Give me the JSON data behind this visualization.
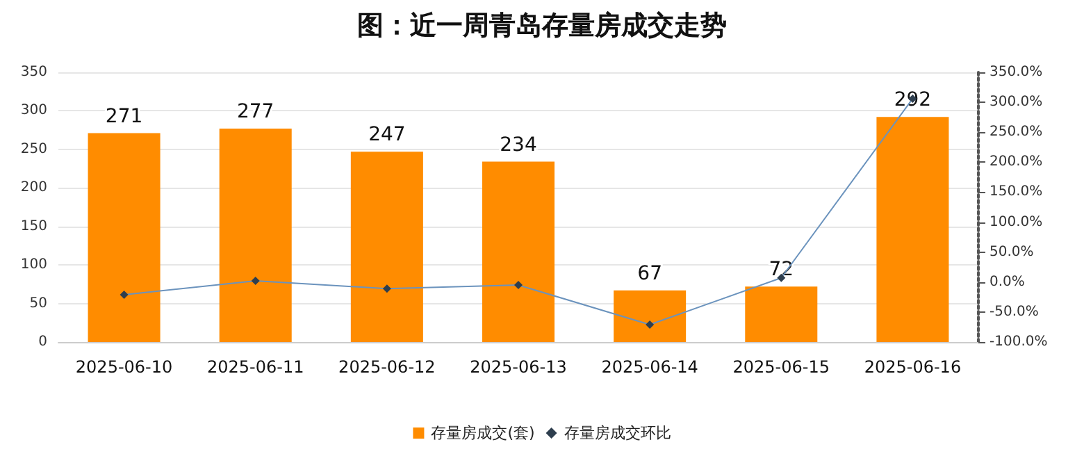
{
  "chart_data": {
    "type": "bar",
    "title": "图：近一周青岛存量房成交走势",
    "categories": [
      "2025-06-10",
      "2025-06-11",
      "2025-06-12",
      "2025-06-13",
      "2025-06-14",
      "2025-06-15",
      "2025-06-16"
    ],
    "series": [
      {
        "name": "存量房成交(套)",
        "color": "#ff8c00",
        "values": [
          271,
          277,
          247,
          234,
          67,
          72,
          292
        ],
        "value_labels": [
          "271",
          "277",
          "247",
          "234",
          "67",
          "72",
          "292"
        ]
      },
      {
        "name": "存量房成交环比",
        "type": "line",
        "axis": "y2",
        "color": "#6b93bd",
        "marker": "diamond",
        "values": [
          -21,
          2,
          -11,
          -5,
          -71,
          7,
          306
        ]
      }
    ],
    "ylim": [
      0,
      350
    ],
    "yticks": [
      0,
      50,
      100,
      150,
      200,
      250,
      300,
      350
    ],
    "y2lim": [
      -100,
      350
    ],
    "y2ticks": [
      {
        "value": -100,
        "label": "-100.0%"
      },
      {
        "value": -50,
        "label": "-50.0%"
      },
      {
        "value": 0,
        "label": "0.0%"
      },
      {
        "value": 50,
        "label": "50.0%"
      },
      {
        "value": 100,
        "label": "100.0%"
      },
      {
        "value": 150,
        "label": "150.0%"
      },
      {
        "value": 200,
        "label": "200.0%"
      },
      {
        "value": 250,
        "label": "250.0%"
      },
      {
        "value": 300,
        "label": "300.0%"
      },
      {
        "value": 350,
        "label": "350.0%"
      }
    ],
    "grid": "y",
    "legend": "bottom"
  }
}
